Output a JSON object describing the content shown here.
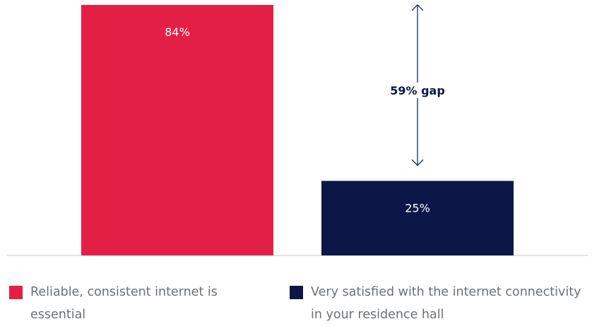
{
  "chart_data": {
    "type": "bar",
    "categories": [
      "Reliable, consistent internet is essential",
      "Very satisfied with the internet connectivity in your residence hall"
    ],
    "values": [
      84,
      25
    ],
    "value_labels": [
      "84%",
      "25%"
    ],
    "colors": [
      "#e41f46",
      "#0c1747"
    ],
    "ylim": [
      0,
      84
    ],
    "annotation": {
      "label": "59% gap",
      "from_value": 84,
      "to_value": 25
    },
    "legend": {
      "placement": "bottom",
      "items": [
        {
          "label": "Reliable, consistent internet is essential",
          "color": "#e41f46"
        },
        {
          "label": "Very satisfied with the internet connectivity in your residence hall",
          "color": "#0c1747"
        }
      ]
    }
  }
}
